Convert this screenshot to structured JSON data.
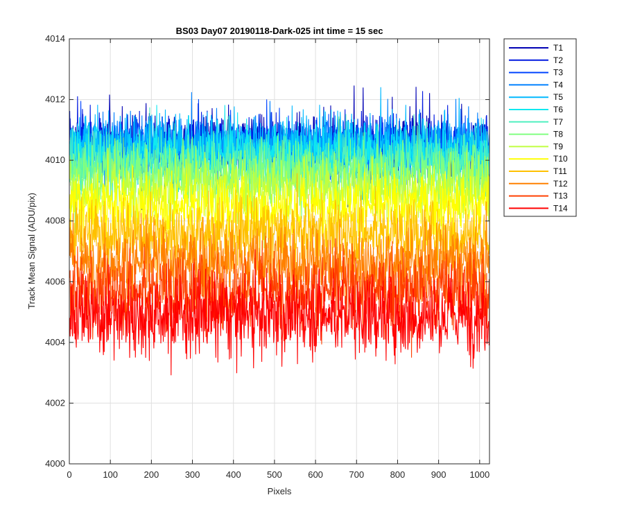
{
  "chart_data": {
    "type": "line",
    "title": "BS03 Day07 20190118-Dark-025 int time = 15 sec",
    "xlabel": "Pixels",
    "ylabel": "Track Mean Signal (ADU/pix)",
    "xlim": [
      0,
      1024
    ],
    "ylim": [
      4000,
      4014
    ],
    "xticks": [
      0,
      100,
      200,
      300,
      400,
      500,
      600,
      700,
      800,
      900,
      1000
    ],
    "yticks": [
      4000,
      4002,
      4004,
      4006,
      4008,
      4010,
      4012,
      4014
    ],
    "grid": true,
    "legend_position": "outside-top-right",
    "n_points": 1024,
    "series": [
      {
        "name": "T1",
        "color": "#0000b4",
        "mean": 4010.6,
        "noise": 0.55
      },
      {
        "name": "T2",
        "color": "#0018e0",
        "mean": 4010.5,
        "noise": 0.55
      },
      {
        "name": "T3",
        "color": "#0044ff",
        "mean": 4010.4,
        "noise": 0.55
      },
      {
        "name": "T4",
        "color": "#0080ff",
        "mean": 4010.4,
        "noise": 0.6
      },
      {
        "name": "T5",
        "color": "#00b8ff",
        "mean": 4010.5,
        "noise": 0.65
      },
      {
        "name": "T6",
        "color": "#10e8f0",
        "mean": 4010.2,
        "noise": 0.6
      },
      {
        "name": "T7",
        "color": "#50f0c0",
        "mean": 4009.9,
        "noise": 0.6
      },
      {
        "name": "T8",
        "color": "#80ff80",
        "mean": 4009.6,
        "noise": 0.6
      },
      {
        "name": "T9",
        "color": "#c0ff40",
        "mean": 4009.1,
        "noise": 0.6
      },
      {
        "name": "T10",
        "color": "#ffff00",
        "mean": 4008.5,
        "noise": 0.65
      },
      {
        "name": "T11",
        "color": "#ffc000",
        "mean": 4007.6,
        "noise": 0.7
      },
      {
        "name": "T12",
        "color": "#ff8000",
        "mean": 4006.6,
        "noise": 0.75
      },
      {
        "name": "T13",
        "color": "#ff4000",
        "mean": 4005.7,
        "noise": 0.8
      },
      {
        "name": "T14",
        "color": "#ff0000",
        "mean": 4004.9,
        "noise": 0.85
      }
    ]
  }
}
